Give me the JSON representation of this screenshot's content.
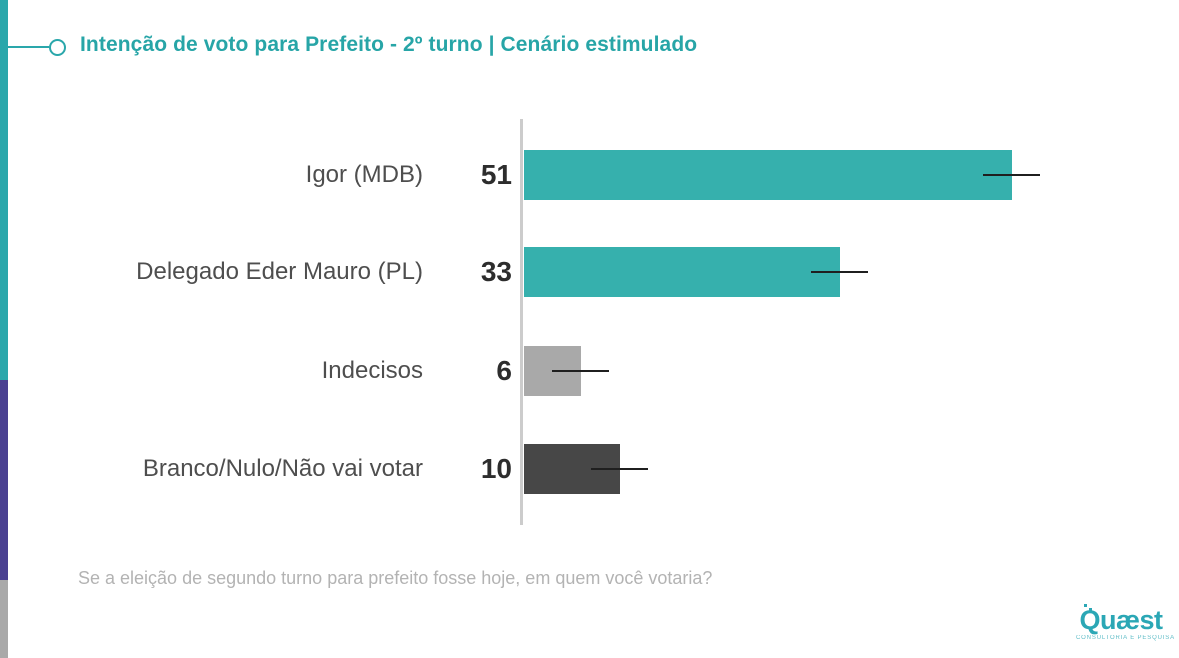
{
  "colors": {
    "stripe_teal": "#2aa7ab",
    "stripe_purple": "#4a4191",
    "stripe_gray": "#a9a9a9",
    "title_teal": "#27a5a7",
    "bar_teal": "#36b0ad",
    "bar_gray": "#a9a9a9",
    "bar_dark": "#474747",
    "axis_line": "#cccccc",
    "error_bar": "#1f1f1f",
    "category_text": "#4e4e4e",
    "value_text": "#2d2d2d",
    "question_text": "#b3b3b3",
    "logo_teal": "#2ba7b5"
  },
  "header": {
    "title": "Intenção de voto para Prefeito - 2º turno | Cenário estimulado"
  },
  "chart_data": {
    "type": "bar",
    "orientation": "horizontal",
    "title": "Intenção de voto para Prefeito - 2º turno | Cenário estimulado",
    "categories": [
      "Igor (MDB)",
      "Delegado Eder Mauro (PL)",
      "Indecisos",
      "Branco/Nulo/Não vai votar"
    ],
    "values": [
      51,
      33,
      6,
      10
    ],
    "bar_colors": [
      "#36b0ad",
      "#36b0ad",
      "#a9a9a9",
      "#474747"
    ],
    "value_labels_position": "left-of-axis",
    "error_bars": {
      "shown": true,
      "half_width_units": 3
    },
    "xlim": [
      0,
      68
    ],
    "grid": false,
    "legend": false,
    "xlabel": "",
    "ylabel": ""
  },
  "footer": {
    "question": "Se a eleição de segundo turno para prefeito fosse hoje, em quem você votaria?"
  },
  "logo": {
    "brand": "Quæst",
    "tagline": "CONSULTORIA E PESQUISA"
  }
}
